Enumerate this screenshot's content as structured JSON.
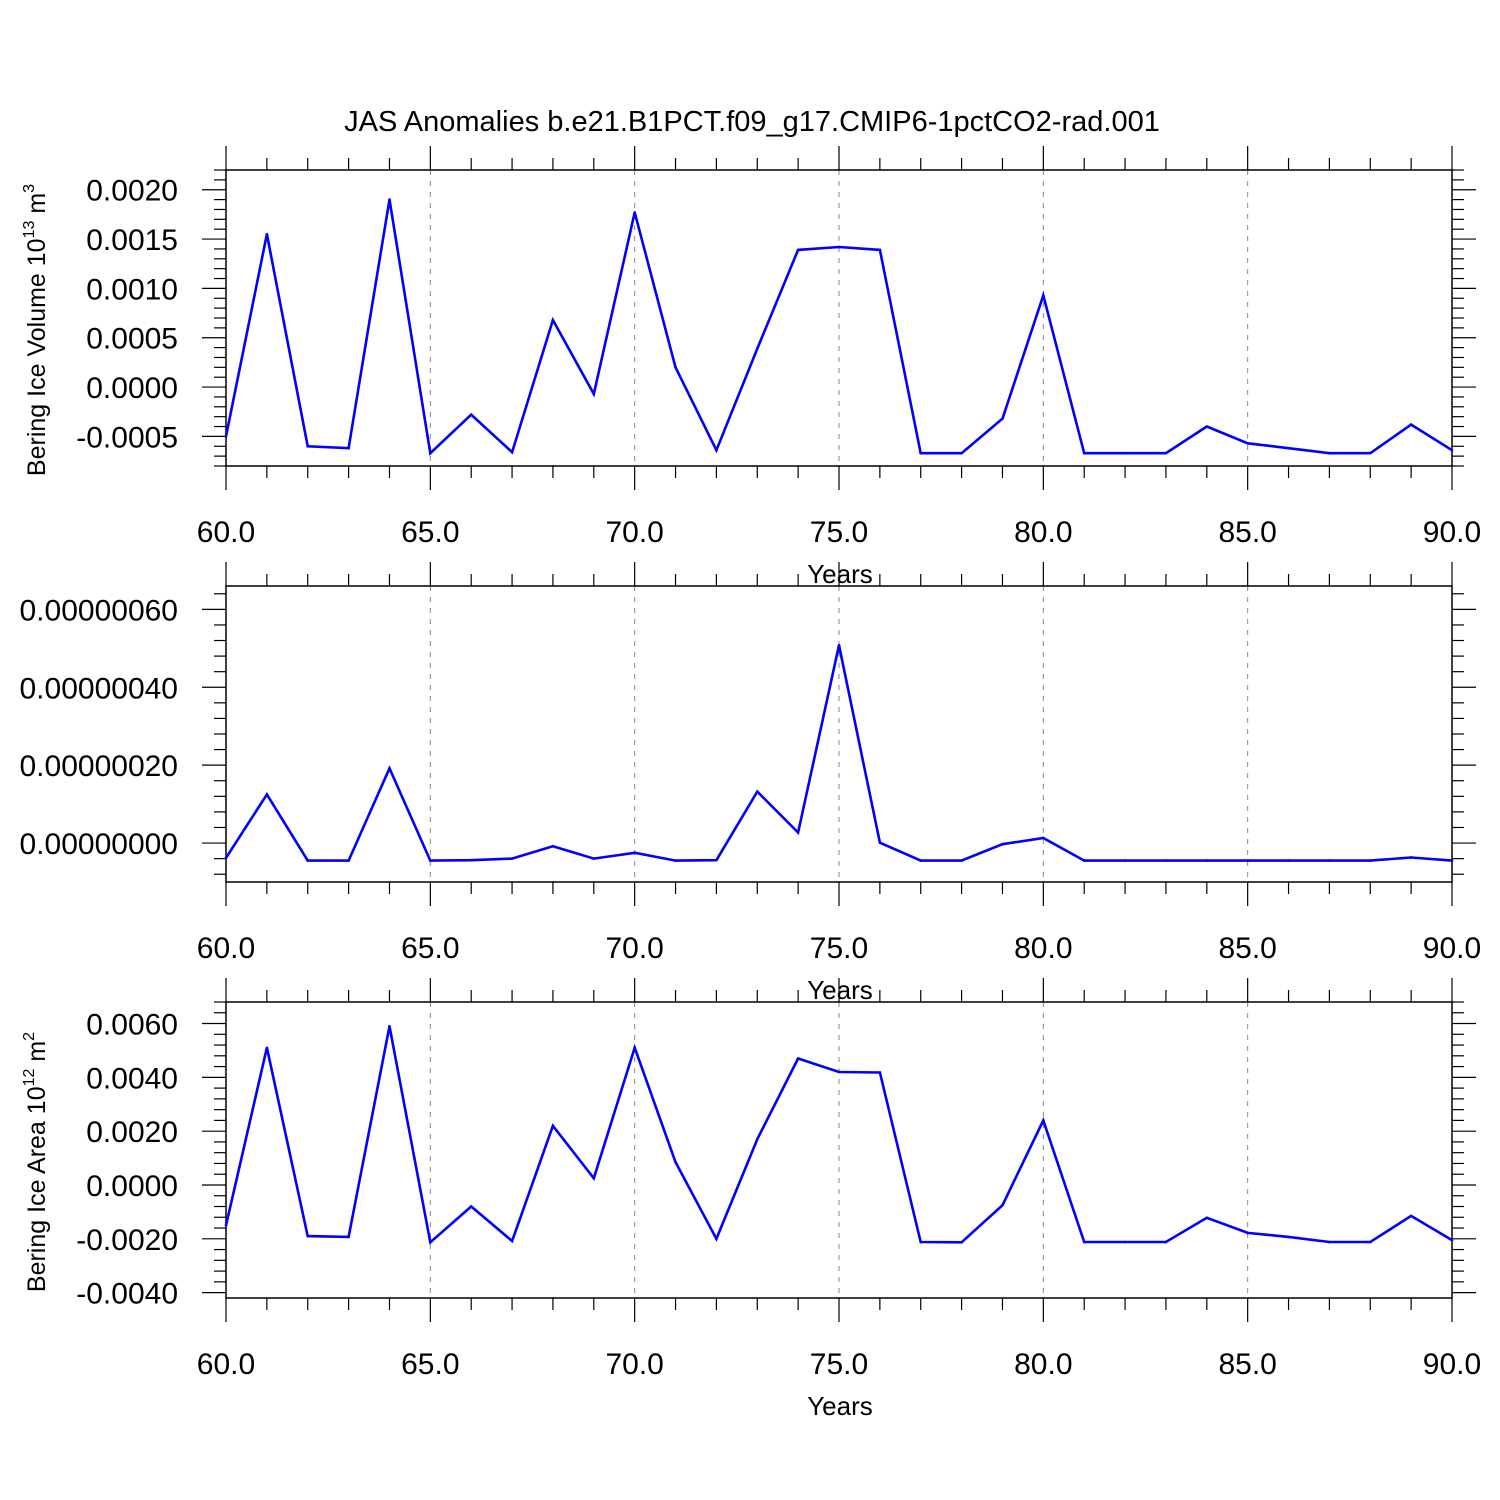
{
  "title": "JAS Anomalies b.e21.B1PCT.f09_g17.CMIP6-1pctCO2-rad.001",
  "series_color": "#0000ff",
  "chart_data": [
    {
      "type": "line",
      "ylabel": {
        "parts": [
          "Bering Ice Volume 10",
          "13",
          " m",
          "3"
        ]
      },
      "xlabel": "Years",
      "xlim": [
        60,
        90
      ],
      "ylim": [
        -0.0008,
        0.0022
      ],
      "xticks": [
        60,
        65,
        70,
        75,
        80,
        85,
        90
      ],
      "xtick_labels": [
        "60.0",
        "65.0",
        "70.0",
        "75.0",
        "80.0",
        "85.0",
        "90.0"
      ],
      "yticks": [
        -0.0005,
        0,
        0.0005,
        0.001,
        0.0015,
        0.002
      ],
      "ytick_labels": [
        "-0.0005",
        "0.0000",
        "0.0005",
        "0.0010",
        "0.0015",
        "0.0020"
      ],
      "grid": "vertical dashed",
      "x": [
        60,
        61,
        62,
        63,
        64,
        65,
        66,
        67,
        68,
        69,
        70,
        71,
        72,
        73,
        74,
        75,
        76,
        77,
        78,
        79,
        80,
        81,
        82,
        83,
        84,
        85,
        86,
        87,
        88,
        89,
        90
      ],
      "y": [
        -0.0005,
        0.00155,
        -0.0006,
        -0.00062,
        0.0019,
        -0.00067,
        -0.00028,
        -0.00066,
        0.00068,
        -7e-05,
        0.00177,
        0.0002,
        -0.00064,
        0.00039,
        0.00139,
        0.00142,
        0.00139,
        -0.00067,
        -0.00067,
        -0.00032,
        0.00093,
        -0.00067,
        -0.00067,
        -0.00067,
        -0.0004,
        -0.00057,
        -0.00062,
        -0.00067,
        -0.00067,
        -0.00038,
        -0.00064
      ]
    },
    {
      "type": "line",
      "ylabel": {
        "parts": []
      },
      "xlabel": "Years",
      "xlim": [
        60,
        90
      ],
      "ylim": [
        -1e-07,
        6.6e-07
      ],
      "xticks": [
        60,
        65,
        70,
        75,
        80,
        85,
        90
      ],
      "xtick_labels": [
        "60.0",
        "65.0",
        "70.0",
        "75.0",
        "80.0",
        "85.0",
        "90.0"
      ],
      "yticks": [
        0,
        2e-07,
        4e-07,
        6e-07
      ],
      "ytick_labels": [
        "0.00000000",
        "0.00000020",
        "0.00000040",
        "0.00000060"
      ],
      "grid": "vertical dashed",
      "x": [
        60,
        61,
        62,
        63,
        64,
        65,
        66,
        67,
        68,
        69,
        70,
        71,
        72,
        73,
        74,
        75,
        76,
        77,
        78,
        79,
        80,
        81,
        82,
        83,
        84,
        85,
        86,
        87,
        88,
        89,
        90
      ],
      "y": [
        -3.8e-08,
        1.25e-07,
        -4.5e-08,
        -4.5e-08,
        1.92e-07,
        -4.5e-08,
        -4.4e-08,
        -4e-08,
        -8e-09,
        -4e-08,
        -2.5e-08,
        -4.5e-08,
        -4.4e-08,
        1.32e-07,
        2.7e-08,
        5.08e-07,
        1e-09,
        -4.5e-08,
        -4.5e-08,
        -3e-09,
        1.3e-08,
        -4.5e-08,
        -4.5e-08,
        -4.5e-08,
        -4.5e-08,
        -4.5e-08,
        -4.5e-08,
        -4.5e-08,
        -4.5e-08,
        -3.7e-08,
        -4.5e-08
      ]
    },
    {
      "type": "line",
      "ylabel": {
        "parts": [
          "Bering Ice Area 10",
          "12",
          " m",
          "2"
        ]
      },
      "xlabel": "Years",
      "xlim": [
        60,
        90
      ],
      "ylim": [
        -0.0042,
        0.0068
      ],
      "xticks": [
        60,
        65,
        70,
        75,
        80,
        85,
        90
      ],
      "xtick_labels": [
        "60.0",
        "65.0",
        "70.0",
        "75.0",
        "80.0",
        "85.0",
        "90.0"
      ],
      "yticks": [
        -0.004,
        -0.002,
        0,
        0.002,
        0.004,
        0.006
      ],
      "ytick_labels": [
        "-0.0040",
        "-0.0020",
        "0.0000",
        "0.0020",
        "0.0040",
        "0.0060"
      ],
      "grid": "vertical dashed",
      "x": [
        60,
        61,
        62,
        63,
        64,
        65,
        66,
        67,
        68,
        69,
        70,
        71,
        72,
        73,
        74,
        75,
        76,
        77,
        78,
        79,
        80,
        81,
        82,
        83,
        84,
        85,
        86,
        87,
        88,
        89,
        90
      ],
      "y": [
        -0.0015,
        0.0051,
        -0.0019,
        -0.00193,
        0.0059,
        -0.00213,
        -0.0008,
        -0.00208,
        0.0022,
        0.00025,
        0.0051,
        0.00085,
        -0.002,
        0.0017,
        0.0047,
        0.0042,
        0.00418,
        -0.00212,
        -0.00213,
        -0.00075,
        0.0024,
        -0.00212,
        -0.00212,
        -0.00212,
        -0.00122,
        -0.00178,
        -0.00193,
        -0.00212,
        -0.00212,
        -0.00115,
        -0.00205
      ]
    }
  ]
}
